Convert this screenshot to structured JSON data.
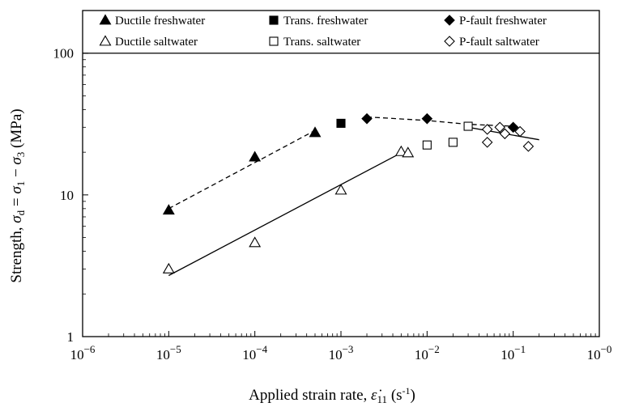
{
  "chart_data": {
    "type": "scatter",
    "title": "",
    "xscale": "log",
    "yscale": "log",
    "xlim": [
      1e-06,
      1
    ],
    "ylim": [
      1,
      200
    ],
    "grid": false,
    "legend_position": "top (inside plot, above the 100 MPa line)",
    "xlabel": {
      "main": "Applied strain rate, ",
      "symbol": "ε̇",
      "sub": "11",
      "units": " (s",
      "units_exp": "-1",
      "units_close": ")"
    },
    "ylabel": {
      "main": "Strength, ",
      "s1": "σ",
      "s1_sub": "d",
      "eq": " = ",
      "s2": "σ",
      "s2_sub": "1",
      "minus": " − ",
      "s3": "σ",
      "s3_sub": "3",
      "units": " (MPa)"
    },
    "xticks": [
      {
        "value": 1e-06,
        "base": "10",
        "exp": "−6"
      },
      {
        "value": 1e-05,
        "base": "10",
        "exp": "−5"
      },
      {
        "value": 0.0001,
        "base": "10",
        "exp": "−4"
      },
      {
        "value": 0.001,
        "base": "10",
        "exp": "−3"
      },
      {
        "value": 0.01,
        "base": "10",
        "exp": "−2"
      },
      {
        "value": 0.1,
        "base": "10",
        "exp": "−1"
      },
      {
        "value": 1,
        "base": "10",
        "exp": "−0"
      }
    ],
    "yticks": [
      {
        "value": 1,
        "label": "1"
      },
      {
        "value": 10,
        "label": "10"
      },
      {
        "value": 100,
        "label": "100"
      }
    ],
    "reference_line_y": 100,
    "series": [
      {
        "name": "Ductile freshwater",
        "marker": "triangle",
        "filled": true,
        "points": [
          [
            1e-05,
            7.8
          ],
          [
            0.0001,
            18.5
          ],
          [
            0.0005,
            27.5
          ]
        ]
      },
      {
        "name": "Trans. freshwater",
        "marker": "square",
        "filled": true,
        "points": [
          [
            0.001,
            32
          ]
        ]
      },
      {
        "name": "P-fault freshwater",
        "marker": "diamond",
        "filled": true,
        "points": [
          [
            0.002,
            34.5
          ],
          [
            0.01,
            34.5
          ],
          [
            0.1,
            30
          ]
        ]
      },
      {
        "name": "Ductile saltwater",
        "marker": "triangle",
        "filled": false,
        "points": [
          [
            1e-05,
            3.0
          ],
          [
            0.0001,
            4.6
          ],
          [
            0.001,
            10.8
          ],
          [
            0.005,
            20.2
          ],
          [
            0.006,
            19.8
          ]
        ]
      },
      {
        "name": "Trans. saltwater",
        "marker": "square",
        "filled": false,
        "points": [
          [
            0.01,
            22.5
          ],
          [
            0.02,
            23.5
          ],
          [
            0.03,
            30.5
          ]
        ]
      },
      {
        "name": "P-fault saltwater",
        "marker": "diamond",
        "filled": false,
        "points": [
          [
            0.05,
            29
          ],
          [
            0.05,
            23.5
          ],
          [
            0.07,
            30
          ],
          [
            0.08,
            27
          ],
          [
            0.12,
            28
          ],
          [
            0.15,
            22
          ]
        ]
      }
    ],
    "fit_lines": [
      {
        "style": "dashed",
        "points": [
          [
            1e-05,
            8.0
          ],
          [
            0.0005,
            28.5
          ]
        ]
      },
      {
        "style": "dashed",
        "points": [
          [
            0.002,
            35.5
          ],
          [
            0.01,
            33.5
          ],
          [
            0.03,
            31.5
          ],
          [
            0.1,
            30.5
          ]
        ]
      },
      {
        "style": "solid",
        "points": [
          [
            1e-05,
            2.7
          ],
          [
            0.005,
            19.8
          ]
        ]
      },
      {
        "style": "solid",
        "points": [
          [
            0.03,
            30
          ],
          [
            0.2,
            24.5
          ]
        ]
      }
    ]
  }
}
